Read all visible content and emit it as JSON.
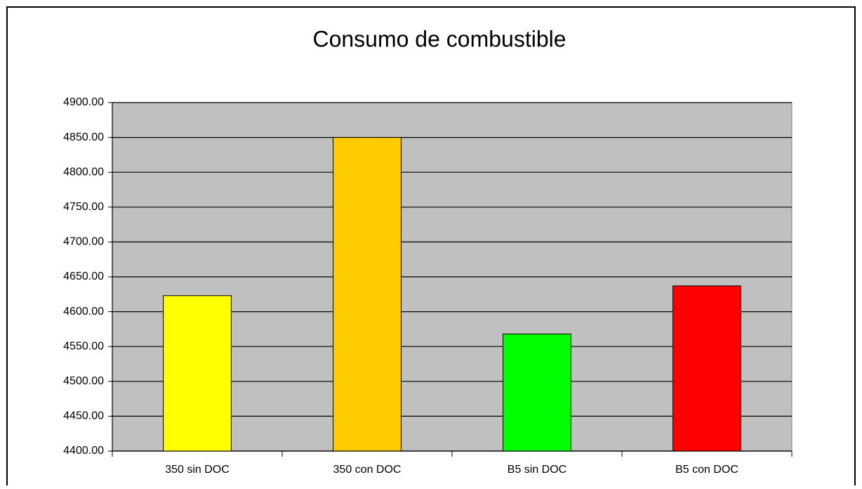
{
  "chart_data": {
    "type": "bar",
    "title": "Consumo de combustible",
    "categories": [
      "350 sin DOC",
      "350 con DOC",
      "B5 sin DOC",
      "B5 con DOC"
    ],
    "values": [
      4623,
      4850,
      4568,
      4637
    ],
    "colors": [
      "#ffff00",
      "#ffcc00",
      "#00ff00",
      "#ff0000"
    ],
    "ylim": [
      4400,
      4900
    ],
    "yticks": [
      {
        "value": 4400,
        "label": "4400.00"
      },
      {
        "value": 4450,
        "label": "4450.00"
      },
      {
        "value": 4500,
        "label": "4500.00"
      },
      {
        "value": 4550,
        "label": "4550.00"
      },
      {
        "value": 4600,
        "label": "4600.00"
      },
      {
        "value": 4650,
        "label": "4650.00"
      },
      {
        "value": 4700,
        "label": "4700.00"
      },
      {
        "value": 4750,
        "label": "4750.00"
      },
      {
        "value": 4800,
        "label": "4800.00"
      },
      {
        "value": 4850,
        "label": "4850.00"
      },
      {
        "value": 4900,
        "label": "4900.00"
      }
    ],
    "grid": true
  }
}
